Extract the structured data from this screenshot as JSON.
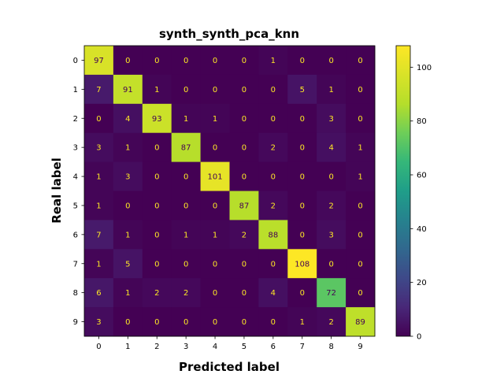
{
  "chart_data": {
    "type": "heatmap",
    "title": "synth_synth_pca_knn",
    "xlabel": "Predicted label",
    "ylabel": "Real label",
    "x_categories": [
      "0",
      "1",
      "2",
      "3",
      "4",
      "5",
      "6",
      "7",
      "8",
      "9"
    ],
    "y_categories": [
      "0",
      "1",
      "2",
      "3",
      "4",
      "5",
      "6",
      "7",
      "8",
      "9"
    ],
    "matrix": [
      [
        97,
        0,
        0,
        0,
        0,
        0,
        1,
        0,
        0,
        0
      ],
      [
        7,
        91,
        1,
        0,
        0,
        0,
        0,
        5,
        1,
        0
      ],
      [
        0,
        4,
        93,
        1,
        1,
        0,
        0,
        0,
        3,
        0
      ],
      [
        3,
        1,
        0,
        87,
        0,
        0,
        2,
        0,
        4,
        1
      ],
      [
        1,
        3,
        0,
        0,
        101,
        0,
        0,
        0,
        0,
        1
      ],
      [
        1,
        0,
        0,
        0,
        0,
        87,
        2,
        0,
        2,
        0
      ],
      [
        7,
        1,
        0,
        1,
        1,
        2,
        88,
        0,
        3,
        0
      ],
      [
        1,
        5,
        0,
        0,
        0,
        0,
        0,
        108,
        0,
        0
      ],
      [
        6,
        1,
        2,
        2,
        0,
        0,
        4,
        0,
        72,
        0
      ],
      [
        3,
        0,
        0,
        0,
        0,
        0,
        0,
        1,
        2,
        89
      ]
    ],
    "colormap": "viridis",
    "colorbar": {
      "vmin": 0,
      "vmax": 108,
      "ticks": [
        0,
        20,
        40,
        60,
        80,
        100
      ]
    },
    "text_colors": {
      "on_dark": "#fde725",
      "on_light": "#440154"
    }
  }
}
